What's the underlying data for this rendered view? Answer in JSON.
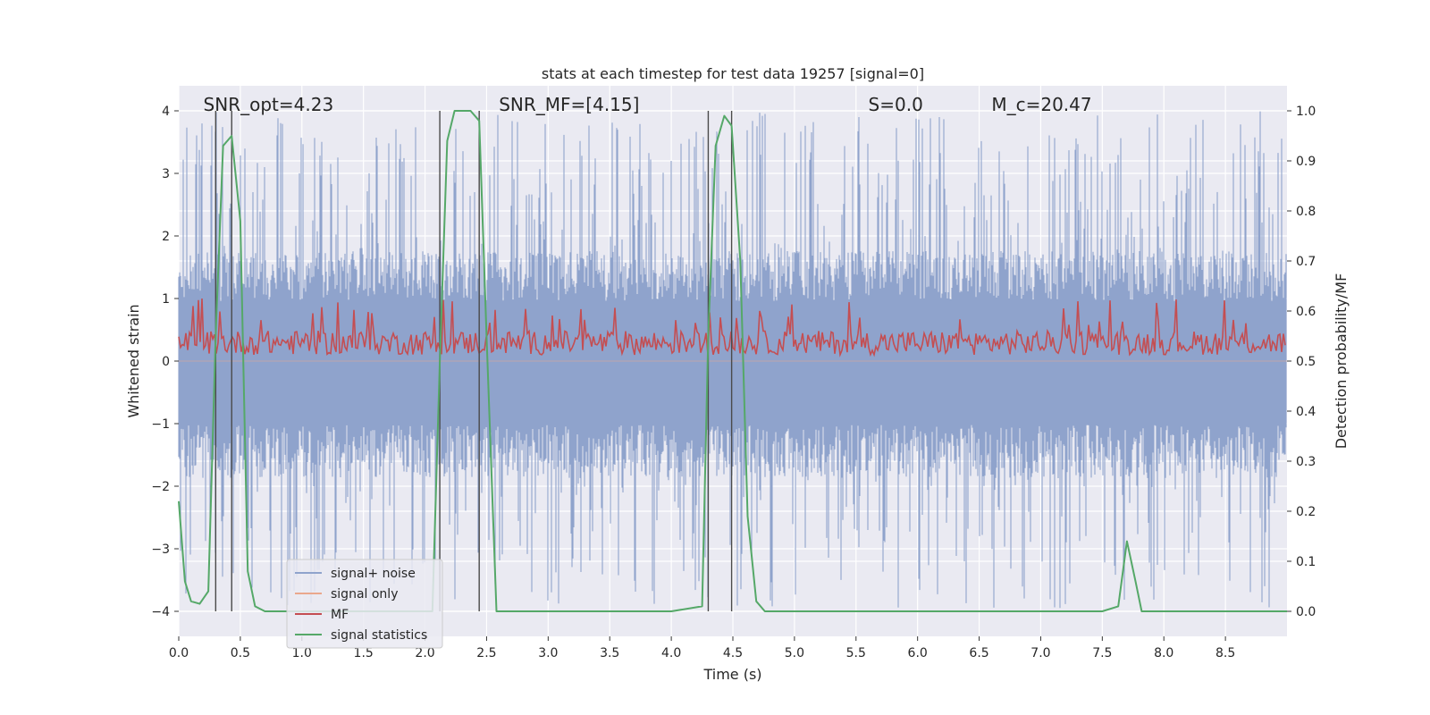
{
  "chart_data": {
    "type": "line",
    "title": "stats at each timestep for test data 19257 [signal=0]",
    "xlabel": "Time (s)",
    "ylabel": "Whitened strain",
    "ylabel_right": "Detection probability/MF",
    "xlim": [
      0.0,
      9.0
    ],
    "ylim": [
      -4.4,
      4.4
    ],
    "ylim_right": [
      -0.05,
      1.05
    ],
    "x_ticks": [
      "0.0",
      "0.5",
      "1.0",
      "1.5",
      "2.0",
      "2.5",
      "3.0",
      "3.5",
      "4.0",
      "4.5",
      "5.0",
      "5.5",
      "6.0",
      "6.5",
      "7.0",
      "7.5",
      "8.0",
      "8.5"
    ],
    "y_ticks": [
      "−4",
      "−3",
      "−2",
      "−1",
      "0",
      "1",
      "2",
      "3",
      "4"
    ],
    "y_ticks_right": [
      "0.0",
      "0.1",
      "0.2",
      "0.3",
      "0.4",
      "0.5",
      "0.6",
      "0.7",
      "0.8",
      "0.9",
      "1.0"
    ],
    "grid": true,
    "legend_position": "lower-left",
    "annotations": [
      {
        "text": "SNR_opt=4.23",
        "x": 0.2
      },
      {
        "text": "SNR_MF=[4.15]",
        "x": 2.6
      },
      {
        "text": "S=0.0",
        "x": 5.6
      },
      {
        "text": "M_c=20.47",
        "x": 6.6
      }
    ],
    "vertical_lines_x": [
      0.3,
      0.43,
      2.12,
      2.44,
      4.3,
      4.49
    ],
    "series": [
      {
        "name": "signal+ noise",
        "color": "#8fa3cc",
        "axis": "left",
        "description_band": {
          "upper_typical": 1.6,
          "upper_peak": 4.0,
          "lower_typical": -1.7,
          "lower_peak": -4.0
        }
      },
      {
        "name": "signal only",
        "color": "#eaa88c",
        "axis": "left",
        "x": [
          0.0,
          9.0
        ],
        "y": [
          0.0,
          0.0
        ]
      },
      {
        "name": "MF",
        "color": "#c44e52",
        "axis": "left",
        "baseline": 0.0,
        "typical_max": 0.55,
        "peak_max": 1.0
      },
      {
        "name": "signal statistics",
        "color": "#55a868",
        "axis": "right",
        "x": [
          0.0,
          0.05,
          0.1,
          0.17,
          0.24,
          0.3,
          0.36,
          0.43,
          0.5,
          0.56,
          0.62,
          0.7,
          0.8,
          1.0,
          1.5,
          2.0,
          2.06,
          2.12,
          2.18,
          2.24,
          2.37,
          2.44,
          2.5,
          2.58,
          2.8,
          3.5,
          4.0,
          4.25,
          4.3,
          4.36,
          4.43,
          4.49,
          4.56,
          4.62,
          4.69,
          4.76,
          4.9,
          5.5,
          6.0,
          7.0,
          7.5,
          7.63,
          7.7,
          7.77,
          7.82,
          8.0,
          9.0
        ],
        "y": [
          0.22,
          0.06,
          0.02,
          0.015,
          0.04,
          0.55,
          0.93,
          0.95,
          0.78,
          0.08,
          0.01,
          0.0,
          0.0,
          0.0,
          0.0,
          0.0,
          0.0,
          0.5,
          0.94,
          1.0,
          1.0,
          0.98,
          0.55,
          0.0,
          0.0,
          0.0,
          0.0,
          0.01,
          0.55,
          0.93,
          0.99,
          0.97,
          0.7,
          0.19,
          0.02,
          0.0,
          0.0,
          0.0,
          0.0,
          0.0,
          0.0,
          0.01,
          0.14,
          0.06,
          0.0,
          0.0,
          0.0
        ]
      }
    ]
  }
}
